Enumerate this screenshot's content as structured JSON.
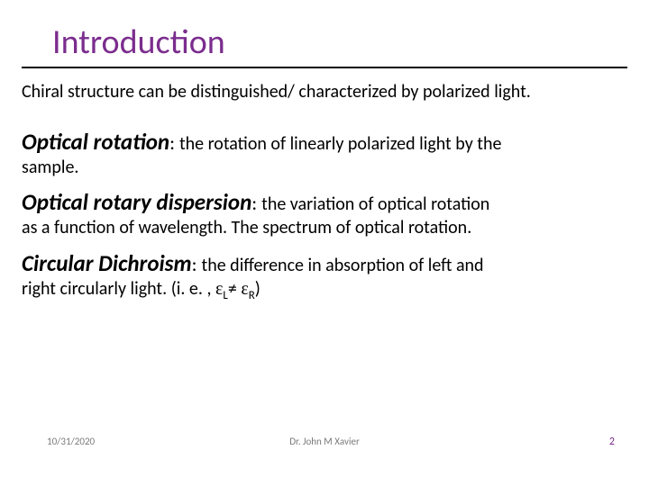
{
  "colors": {
    "title": "#7b2d8e",
    "text": "#000000",
    "footer_grey": "#7a7a7a",
    "rule": "#000000",
    "background": "#ffffff"
  },
  "typography": {
    "title_fontsize_pt": 29,
    "body_fontsize_pt": 15,
    "term_fontsize_pt": 19,
    "footer_fontsize_pt": 8
  },
  "title": "Introduction",
  "intro": "Chiral structure can be distinguished/ characterized by polarized light.",
  "defs": [
    {
      "term": "Optical rotation",
      "head_tail": "the rotation of linearly polarized light by  the",
      "cont": "sample."
    },
    {
      "term": "Optical rotary dispersion",
      "head_tail": "the variation  of optical rotation",
      "cont": "as a function of wavelength. The spectrum of optical rotation."
    },
    {
      "term": "Circular Dichroism",
      "head_tail": "the difference in absorption of left and",
      "cont_prefix": "right circularly light. (i. e. , ",
      "greek1": "ε",
      "sub1": "L",
      "neq": "≠ ",
      "greek2": "ε",
      "sub2": "R",
      "cont_suffix": ")"
    }
  ],
  "footer": {
    "date": "10/31/2020",
    "author": "Dr. John M Xavier",
    "page": "2"
  }
}
